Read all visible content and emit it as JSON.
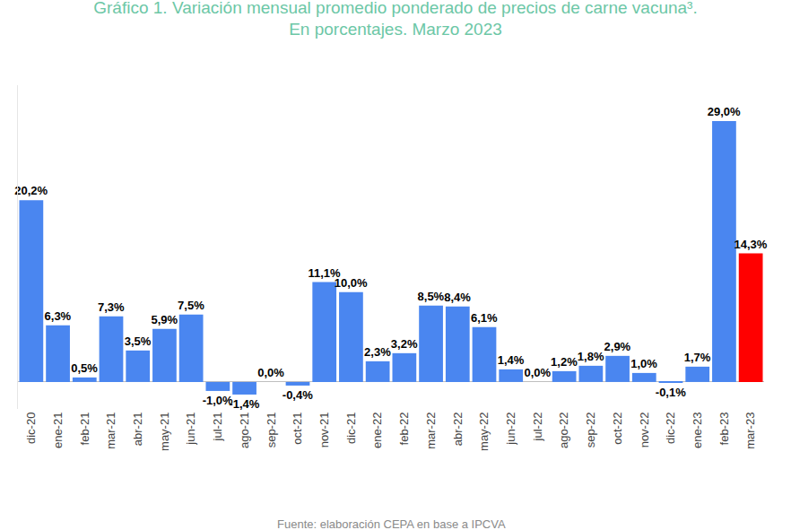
{
  "chart_data": {
    "type": "bar",
    "title": "Gráfico 1. Variación mensual promedio ponderado de precios de carne vacuna³.",
    "subtitle": "En porcentajes. Marzo 2023",
    "annotations": [
      "Fuente: elaboración CEPA en base a IPCVA"
    ],
    "categories": [
      "dic-20",
      "ene-21",
      "feb-21",
      "mar-21",
      "abr-21",
      "may-21",
      "jun-21",
      "jul-21",
      "ago-21",
      "sep-21",
      "oct-21",
      "nov-21",
      "dic-21",
      "ene-22",
      "feb-22",
      "mar-22",
      "abr-22",
      "may-22",
      "jun-22",
      "jul-22",
      "ago-22",
      "sep-22",
      "oct-22",
      "nov-22",
      "dic-22",
      "ene-23",
      "feb-23",
      "mar-23"
    ],
    "values": [
      20.2,
      6.3,
      0.5,
      7.3,
      3.5,
      5.9,
      7.5,
      -1.0,
      -1.4,
      0.0,
      -0.4,
      11.1,
      10.0,
      2.3,
      3.2,
      8.5,
      8.4,
      6.1,
      1.4,
      0.0,
      1.2,
      1.8,
      2.9,
      1.0,
      -0.1,
      1.7,
      29.0,
      14.3
    ],
    "value_labels": [
      "20,2%",
      "6,3%",
      "0,5%",
      "7,3%",
      "3,5%",
      "5,9%",
      "7,5%",
      "-1,0%",
      "-1,4%",
      "0,0%",
      "-0,4%",
      "11,1%",
      "10,0%",
      "2,3%",
      "3,2%",
      "8,5%",
      "8,4%",
      "6,1%",
      "1,4%",
      "0,0%",
      "1,2%",
      "1,8%",
      "2,9%",
      "1,0%",
      "-0,1%",
      "1,7%",
      "29,0%",
      "14,3%"
    ],
    "colors": [
      "#4a86f0",
      "#4a86f0",
      "#4a86f0",
      "#4a86f0",
      "#4a86f0",
      "#4a86f0",
      "#4a86f0",
      "#4a86f0",
      "#4a86f0",
      "#4a86f0",
      "#4a86f0",
      "#4a86f0",
      "#4a86f0",
      "#4a86f0",
      "#4a86f0",
      "#4a86f0",
      "#4a86f0",
      "#4a86f0",
      "#4a86f0",
      "#4a86f0",
      "#4a86f0",
      "#4a86f0",
      "#4a86f0",
      "#4a86f0",
      "#4a86f0",
      "#4a86f0",
      "#4a86f0",
      "#ff0000"
    ],
    "ylim": [
      -3,
      33
    ],
    "grid": false,
    "data_labels": true,
    "tick_labels": "x"
  }
}
